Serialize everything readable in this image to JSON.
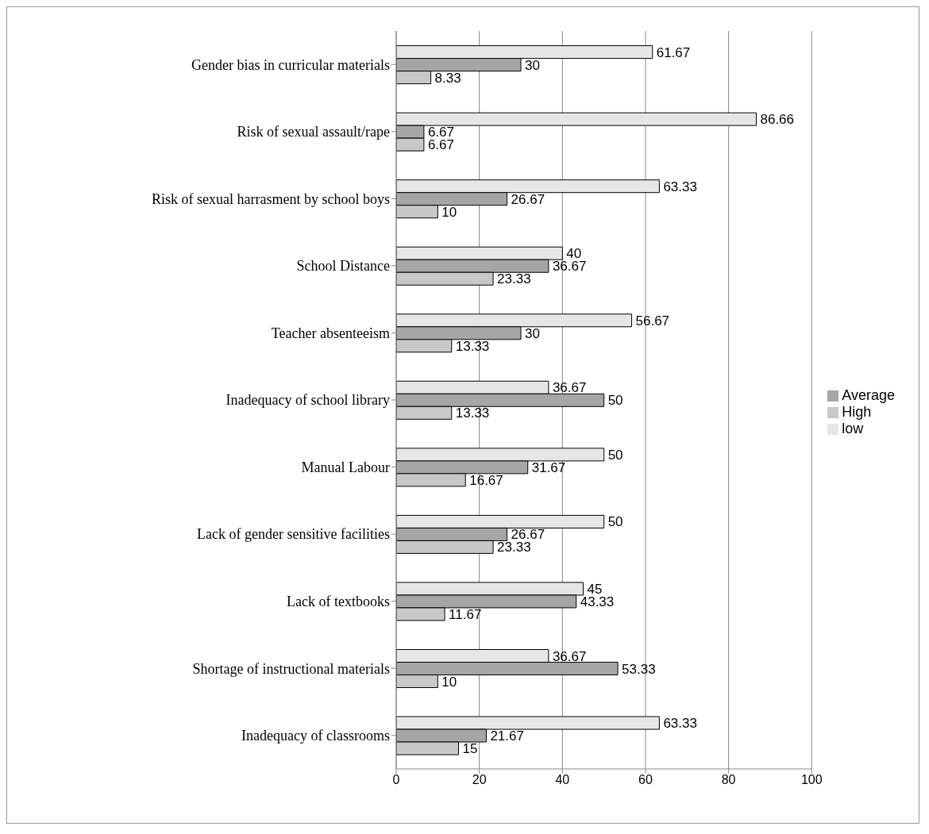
{
  "chart_data": {
    "type": "bar",
    "orientation": "horizontal",
    "categories": [
      "Gender bias in curricular materials",
      "Risk of sexual assault/rape",
      "Risk of sexual harrasment by school boys",
      "School Distance",
      "Teacher absenteeism",
      "Inadequacy of school library",
      "Manual Labour",
      "Lack of gender sensitive facilities",
      "Lack of textbooks",
      "Shortage of instructional materials",
      "Inadequacy of classrooms"
    ],
    "series": [
      {
        "name": "low",
        "color": "#e6e6e6",
        "values": [
          61.67,
          86.66,
          63.33,
          40,
          56.67,
          36.67,
          50,
          50,
          45,
          36.67,
          63.33
        ]
      },
      {
        "name": "Average",
        "color": "#a6a6a6",
        "values": [
          30,
          6.67,
          26.67,
          36.67,
          30,
          50,
          31.67,
          26.67,
          43.33,
          53.33,
          21.67
        ]
      },
      {
        "name": "High",
        "color": "#c8c8c8",
        "values": [
          8.33,
          6.67,
          10,
          23.33,
          13.33,
          13.33,
          16.67,
          23.33,
          11.67,
          10,
          15
        ]
      }
    ],
    "xlim": [
      0,
      100
    ],
    "xticks": [
      0,
      20,
      40,
      60,
      80,
      100
    ],
    "grid": "x",
    "legend": "right",
    "data_labels": true
  }
}
